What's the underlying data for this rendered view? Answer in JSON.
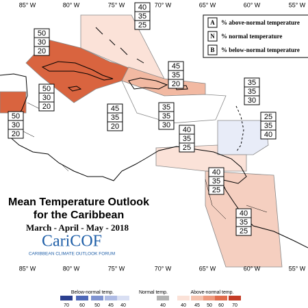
{
  "longitudes": [
    "85° W",
    "80° W",
    "75° W",
    "70° W",
    "65° W",
    "60° W",
    "55° W"
  ],
  "legend": [
    {
      "key": "A",
      "text": "% above-normal temperature"
    },
    {
      "key": "N",
      "text": "% normal temperature"
    },
    {
      "key": "B",
      "text": "% below-normal temperature"
    }
  ],
  "regions": [
    [
      50,
      30,
      20
    ],
    [
      40,
      35,
      25
    ],
    [
      45,
      35,
      20
    ],
    [
      50,
      30,
      20
    ],
    [
      50,
      30,
      20
    ],
    [
      45,
      35,
      20
    ],
    [
      35,
      35,
      30
    ],
    [
      35,
      35,
      30
    ],
    [
      25,
      35,
      40
    ],
    [
      40,
      35,
      25
    ],
    [
      40,
      35,
      25
    ],
    [
      40,
      35,
      25
    ]
  ],
  "title": "Mean Temperature Outlook",
  "subtitle": "for the Caribbean",
  "period": "March - April - May - 2018",
  "logo": {
    "name": "CariCOF",
    "tagline": "CARIBBEAN CLIMATE OUTLOOK FORUM"
  },
  "colorbar": {
    "below": {
      "label": "Below-normal temp.",
      "ticks": [
        70,
        60,
        50,
        45,
        40
      ]
    },
    "normal": {
      "label": "Normal temp.",
      "ticks": [
        40
      ]
    },
    "above": {
      "label": "Above-normal temp.",
      "ticks": [
        40,
        45,
        50,
        60,
        70
      ]
    }
  }
}
